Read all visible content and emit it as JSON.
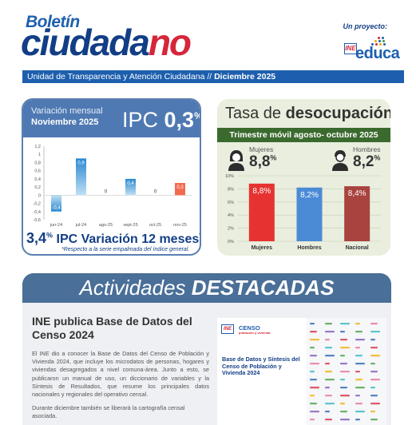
{
  "header": {
    "brand_small": "Boletín",
    "brand_big_main": "ciudada",
    "brand_big_end": "no",
    "project_label": "Un proyecto:",
    "ine_logo_text": "INE",
    "educa_text": "educa",
    "subtitle_main": "Unidad de Transparencia y Atención Ciudadana //",
    "subtitle_date": "Diciembre 2025"
  },
  "ipc": {
    "variation_label": "Variación mensual",
    "month_label": "Noviembre 2025",
    "index_name": "IPC",
    "index_value": "0,3",
    "index_unit": "%",
    "footer_value": "3,4",
    "footer_unit": "%",
    "footer_text": "IPC Variación 12 meses",
    "footer_star": "*",
    "footer_note": "*Respecto a la serie empalmada del índice general."
  },
  "desocupacion": {
    "title_light": "Tasa de",
    "title_bold": "desocupación",
    "period": "Trimestre móvil agosto- octubre 2025",
    "women_label": "Mujeres",
    "women_value": "8,8",
    "men_label": "Hombres",
    "men_value": "8,2",
    "unit": "%"
  },
  "activities": {
    "heading_light": "Actividades",
    "heading_bold": "DESTACADAS",
    "news_title": "INE publica Base de Datos del Censo 2024",
    "news_body": "El INE dio a conocer la Base de Datos del Censo de Población y Vivienda 2024, que incluye los microdatos de personas, hogares y viviendas desagregados a nivel comuna-área. Junto a esto, se publicaron un manual de uso, un diccionario de variables y la Síntesis de Resultados, que resume los principales datos nacionales y regionales del operativo censal.",
    "news_body2": "Durante diciembre también se liberará la cartografía censal asociada.",
    "censo_logo": "INE",
    "censo_word": "CENSO",
    "censo_sub": "población y vivienda",
    "censo_text": "Base de Datos y Síntesis del Censo de Población y Vivienda 2024"
  },
  "chart_data": [
    {
      "type": "bar",
      "title": "",
      "categories": [
        "jun-24",
        "jul-24",
        "ago-25",
        "sept-25",
        "oct-25",
        "nov-25"
      ],
      "values": [
        -0.4,
        0.9,
        0,
        0.4,
        0,
        0.3
      ],
      "value_labels": [
        "-0,4",
        "0,9",
        "0",
        "0,4",
        "0",
        "0,3"
      ],
      "ylim": [
        -0.6,
        1.2
      ],
      "yticks": [
        "1,2",
        "1",
        "0,8",
        "0,6",
        "0,4",
        "0,2",
        "0",
        "-0,2",
        "-0,4",
        "-0,6"
      ],
      "grid": false,
      "colors": {
        "default": "#2a80c6",
        "highlight": "#f26b4f"
      }
    },
    {
      "type": "bar",
      "title": "",
      "categories": [
        "Mujeres",
        "Hombres",
        "Nacional"
      ],
      "values": [
        8.8,
        8.2,
        8.4
      ],
      "value_labels": [
        "8,8%",
        "8,2%",
        "8,4%"
      ],
      "ylim": [
        0,
        10
      ],
      "yticks": [
        "10%",
        "8%",
        "6%",
        "4%",
        "2%",
        "0%"
      ],
      "grid": true,
      "colors": [
        "#e63331",
        "#4b8bd6",
        "#a8433f"
      ]
    }
  ]
}
